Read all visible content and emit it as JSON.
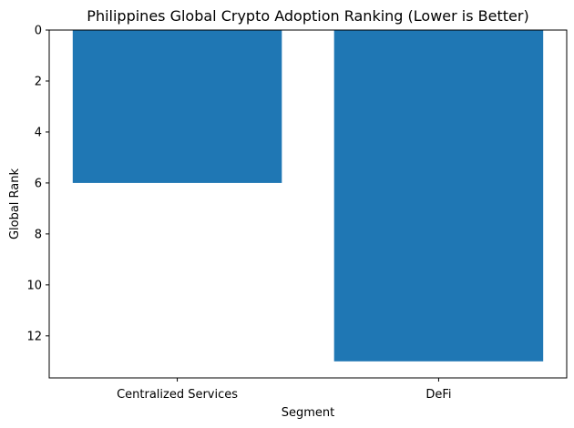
{
  "chart_data": {
    "type": "bar",
    "title": "Philippines Global Crypto Adoption Ranking (Lower is Better)",
    "xlabel": "Segment",
    "ylabel": "Global Rank",
    "categories": [
      "Centralized Services",
      "DeFi"
    ],
    "values": [
      6,
      13
    ],
    "ylim": [
      0,
      13.65
    ],
    "y_inverted": true,
    "yticks": [
      0,
      2,
      4,
      6,
      8,
      10,
      12
    ],
    "bar_color": "#1f77b4",
    "grid": false,
    "legend": "none"
  }
}
